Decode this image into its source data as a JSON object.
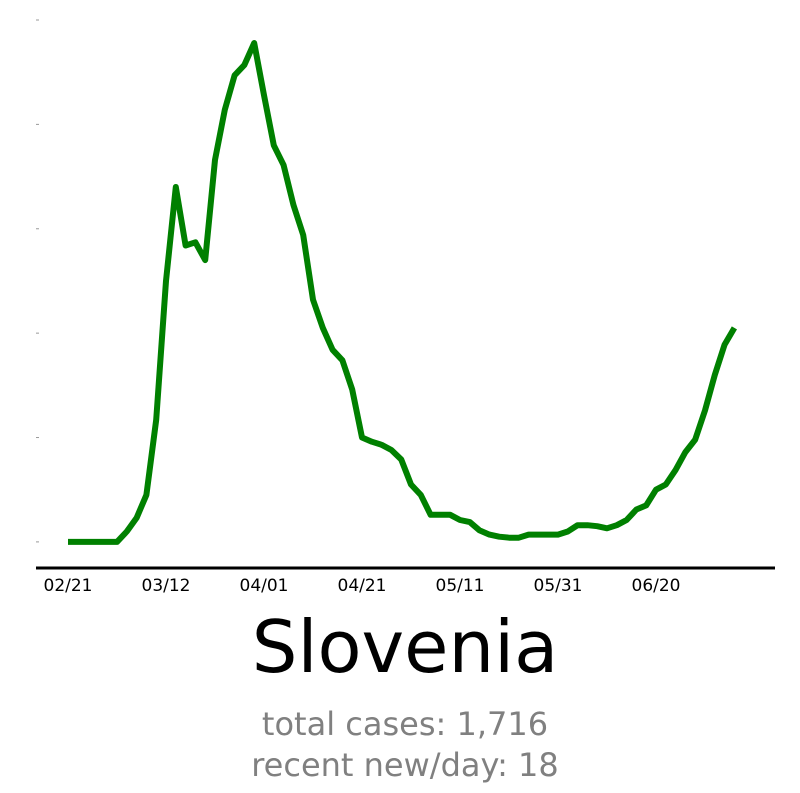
{
  "chart_data": {
    "type": "line",
    "title": "Slovenia",
    "annotations": [
      "total cases: 1,716",
      "recent new/day: 18"
    ],
    "categories": [
      "02/21",
      null,
      null,
      null,
      null,
      null,
      null,
      null,
      null,
      null,
      "03/12",
      null,
      null,
      null,
      null,
      null,
      null,
      null,
      null,
      null,
      "04/01",
      null,
      null,
      null,
      null,
      null,
      null,
      null,
      null,
      null,
      "04/21",
      null,
      null,
      null,
      null,
      null,
      null,
      null,
      null,
      null,
      "05/11",
      null,
      null,
      null,
      null,
      null,
      null,
      null,
      null,
      null,
      "05/31",
      null,
      null,
      null,
      null,
      null,
      null,
      null,
      null,
      null,
      "06/20",
      null,
      null,
      null,
      null,
      null,
      null,
      null,
      null
    ],
    "series": [
      {
        "name": "Slovenia",
        "color": "#008000",
        "values": [
          0,
          0,
          0,
          0,
          0,
          0,
          1,
          2.3,
          4.5,
          11.7,
          25,
          34,
          28.4,
          28.7,
          27,
          36.6,
          41.4,
          44.7,
          45.7,
          47.8,
          42.8,
          38,
          36.1,
          32.3,
          29.4,
          23.2,
          20.5,
          18.4,
          17.4,
          14.6,
          10,
          9.6,
          9.3,
          8.8,
          7.9,
          5.5,
          4.5,
          2.6,
          2.6,
          2.6,
          2.1,
          1.9,
          1.1,
          0.7,
          0.5,
          0.4,
          0.4,
          0.7,
          0.7,
          0.7,
          0.7,
          1,
          1.6,
          1.6,
          1.5,
          1.3,
          1.6,
          2.1,
          3.1,
          3.5,
          5,
          5.5,
          6.9,
          8.6,
          9.8,
          12.6,
          16,
          18.9,
          20.5
        ]
      }
    ],
    "ylim": [
      -2.5,
      50
    ],
    "yticks": [
      0,
      10,
      20,
      30,
      40,
      50
    ]
  }
}
